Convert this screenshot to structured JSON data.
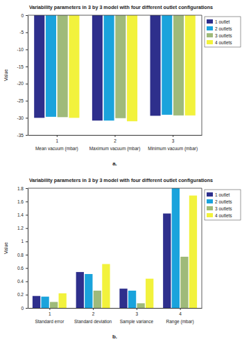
{
  "chart_data": [
    {
      "type": "bar",
      "title": "Variability parameters in 3 by 3 model with four different outlet configurations",
      "y_label": "Value",
      "annotation": "a.",
      "x": [
        1,
        2,
        3
      ],
      "categories": [
        "Mean vacuum (mbar)",
        "Maximum vacuum (mbar)",
        "Minimum vacuum (mbar)"
      ],
      "xlim": [
        0.5,
        3.5
      ],
      "xticks": [
        1,
        2,
        3
      ],
      "ylim": [
        -35,
        0
      ],
      "yticks": [
        -35,
        -30,
        -25,
        -20,
        -15,
        -10,
        -5,
        0
      ],
      "grid": false,
      "legend": "right",
      "series": [
        {
          "name": "1 outlet",
          "color": "#2e2f8c",
          "values": [
            -30.0,
            -30.8,
            -29.4
          ]
        },
        {
          "name": "2 outlets",
          "color": "#1aa3dc",
          "values": [
            -29.7,
            -30.8,
            -29.1
          ]
        },
        {
          "name": "3 outlets",
          "color": "#9fba7a",
          "values": [
            -29.8,
            -30.1,
            -29.3
          ]
        },
        {
          "name": "4 outlets",
          "color": "#f2f23c",
          "values": [
            -30.0,
            -31.0,
            -29.3
          ]
        }
      ]
    },
    {
      "type": "bar",
      "title": "Variability parameters in 3 by 3 model with four different outlet configurations",
      "y_label": "Value",
      "annotation": "b.",
      "x": [
        1,
        2,
        3,
        4
      ],
      "categories": [
        "Standard error",
        "Standard deviation",
        "Sample variance",
        "Range (mbar)"
      ],
      "xlim": [
        0.5,
        4.5
      ],
      "xticks": [
        1,
        2,
        3,
        4
      ],
      "ylim": [
        0,
        1.8
      ],
      "yticks": [
        0,
        0.2,
        0.4,
        0.6,
        0.8,
        1,
        1.2,
        1.4,
        1.6,
        1.8
      ],
      "grid": false,
      "legend": "right",
      "series": [
        {
          "name": "1 outlet",
          "color": "#2e2f8c",
          "values": [
            0.18,
            0.54,
            0.29,
            1.42
          ]
        },
        {
          "name": "2 outlets",
          "color": "#1aa3dc",
          "values": [
            0.17,
            0.51,
            0.26,
            1.8
          ]
        },
        {
          "name": "3 outlets",
          "color": "#9fba7a",
          "values": [
            0.09,
            0.26,
            0.07,
            0.77
          ]
        },
        {
          "name": "4 outlets",
          "color": "#f2f23c",
          "values": [
            0.22,
            0.66,
            0.44,
            1.69
          ]
        }
      ]
    }
  ]
}
